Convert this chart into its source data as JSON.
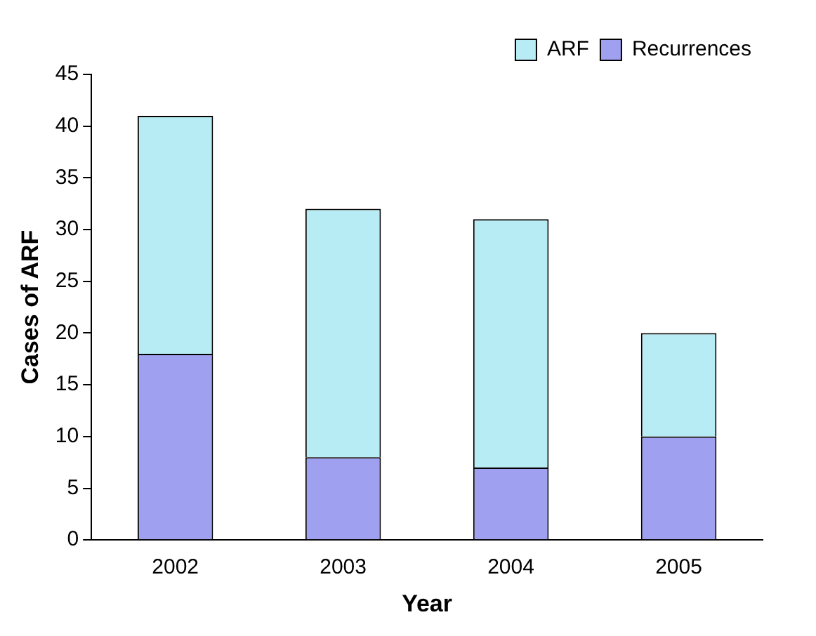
{
  "chart_data": {
    "type": "bar",
    "xlabel": "Year",
    "ylabel": "Cases of ARF",
    "categories": [
      "2002",
      "2003",
      "2004",
      "2005"
    ],
    "stacked": true,
    "series": [
      {
        "name": "Recurrences",
        "color": "#a0a0f0",
        "values": [
          18,
          8,
          7,
          10
        ]
      },
      {
        "name": "ARF",
        "color": "#b8ecf4",
        "values": [
          23,
          24,
          24,
          10
        ]
      }
    ],
    "ylim": [
      0,
      45
    ],
    "yticks": [
      0,
      5,
      10,
      15,
      20,
      25,
      30,
      35,
      40,
      45
    ],
    "grid": false,
    "legend": "top right"
  }
}
